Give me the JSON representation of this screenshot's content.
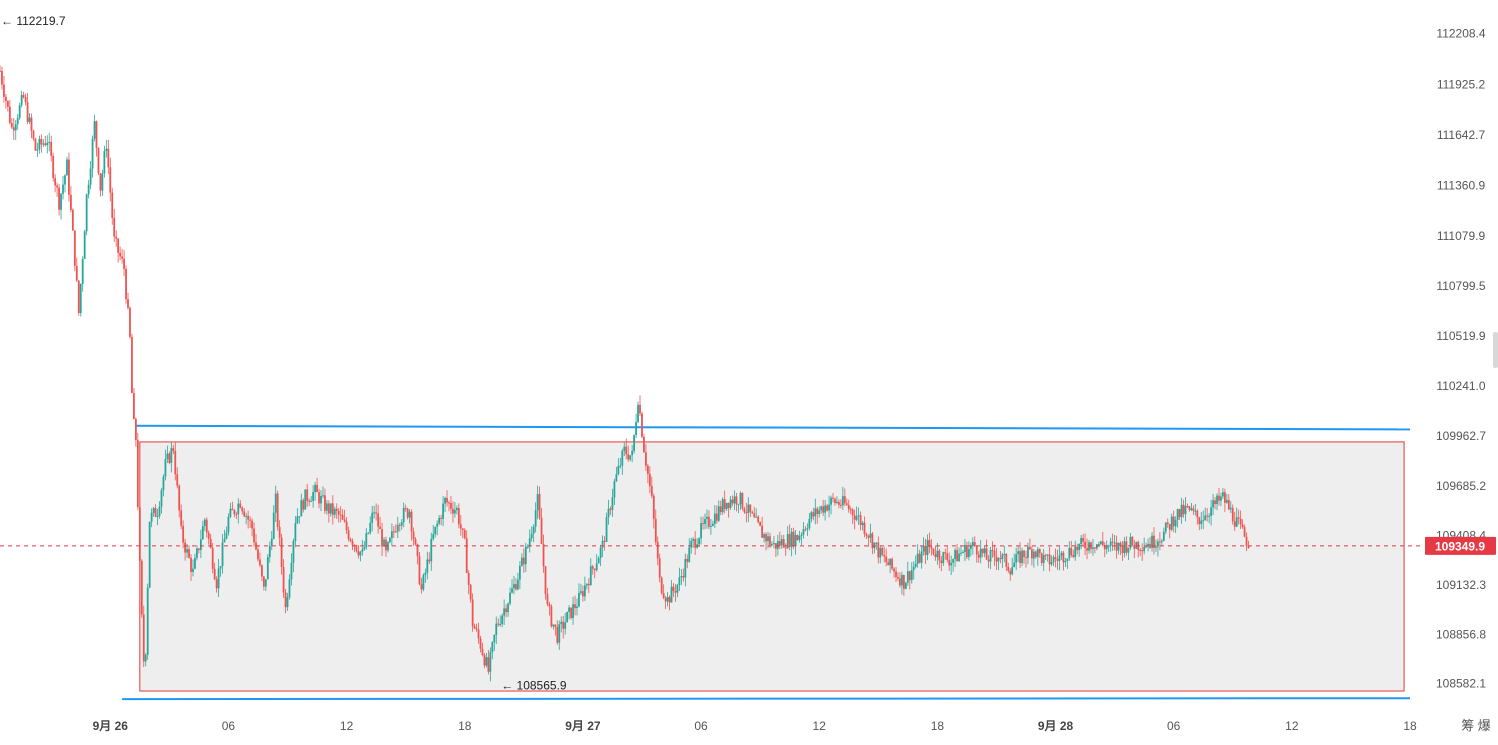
{
  "chart_data": {
    "type": "candlestick",
    "title": "",
    "xlabel": "",
    "ylabel": "",
    "ylim": [
      108490,
      112340
    ],
    "y_ticks": [
      "112208.4",
      "111925.2",
      "111642.7",
      "111360.9",
      "111079.9",
      "110799.5",
      "110519.9",
      "110241.0",
      "109962.7",
      "109685.2",
      "109408.4",
      "109132.3",
      "108856.8",
      "108582.1"
    ],
    "x_ticks": [
      {
        "label": "9月 26",
        "hour": 0,
        "bold": true
      },
      {
        "label": "06",
        "hour": 6,
        "bold": false
      },
      {
        "label": "12",
        "hour": 12,
        "bold": false
      },
      {
        "label": "18",
        "hour": 18,
        "bold": false
      },
      {
        "label": "9月 27",
        "hour": 24,
        "bold": true
      },
      {
        "label": "06",
        "hour": 30,
        "bold": false
      },
      {
        "label": "12",
        "hour": 36,
        "bold": false
      },
      {
        "label": "18",
        "hour": 42,
        "bold": false
      },
      {
        "label": "9月 28",
        "hour": 48,
        "bold": true
      },
      {
        "label": "06",
        "hour": 54,
        "bold": false
      },
      {
        "label": "12",
        "hour": 60,
        "bold": false
      },
      {
        "label": "18",
        "hour": 66,
        "bold": false
      }
    ],
    "x_range_hours": [
      -5.6,
      66.0
    ],
    "price_path": [
      [
        -5.6,
        112000
      ],
      [
        -5.0,
        111680
      ],
      [
        -4.4,
        111850
      ],
      [
        -3.8,
        111560
      ],
      [
        -3.2,
        111620
      ],
      [
        -2.6,
        111270
      ],
      [
        -2.2,
        111470
      ],
      [
        -1.8,
        110950
      ],
      [
        -1.6,
        110650
      ],
      [
        -1.2,
        111300
      ],
      [
        -0.8,
        111700
      ],
      [
        -0.5,
        111350
      ],
      [
        -0.2,
        111600
      ],
      [
        0.2,
        111050
      ],
      [
        0.7,
        110900
      ],
      [
        1.0,
        110500
      ],
      [
        1.15,
        110050
      ],
      [
        1.3,
        109950
      ],
      [
        1.55,
        109050
      ],
      [
        1.75,
        108600
      ],
      [
        2.0,
        109500
      ],
      [
        2.4,
        109550
      ],
      [
        2.8,
        109800
      ],
      [
        3.2,
        109900
      ],
      [
        3.6,
        109420
      ],
      [
        4.2,
        109200
      ],
      [
        4.8,
        109500
      ],
      [
        5.4,
        109150
      ],
      [
        6.0,
        109500
      ],
      [
        6.6,
        109600
      ],
      [
        7.2,
        109450
      ],
      [
        7.8,
        109100
      ],
      [
        8.4,
        109600
      ],
      [
        8.9,
        109000
      ],
      [
        9.4,
        109500
      ],
      [
        9.9,
        109620
      ],
      [
        10.4,
        109650
      ],
      [
        11.0,
        109560
      ],
      [
        11.6,
        109520
      ],
      [
        12.2,
        109400
      ],
      [
        12.8,
        109300
      ],
      [
        13.4,
        109550
      ],
      [
        14.0,
        109300
      ],
      [
        14.6,
        109500
      ],
      [
        15.2,
        109550
      ],
      [
        15.8,
        109100
      ],
      [
        16.4,
        109400
      ],
      [
        17.0,
        109600
      ],
      [
        17.6,
        109550
      ],
      [
        18.0,
        109350
      ],
      [
        18.4,
        108920
      ],
      [
        18.8,
        108800
      ],
      [
        19.2,
        108650
      ],
      [
        19.6,
        108900
      ],
      [
        20.0,
        109000
      ],
      [
        20.6,
        109150
      ],
      [
        21.2,
        109350
      ],
      [
        21.7,
        109600
      ],
      [
        22.2,
        109000
      ],
      [
        22.7,
        108850
      ],
      [
        23.2,
        108950
      ],
      [
        23.8,
        109050
      ],
      [
        24.4,
        109200
      ],
      [
        25.0,
        109350
      ],
      [
        25.6,
        109700
      ],
      [
        26.1,
        109880
      ],
      [
        26.5,
        109850
      ],
      [
        26.8,
        110180
      ],
      [
        27.1,
        109900
      ],
      [
        27.5,
        109600
      ],
      [
        27.9,
        109150
      ],
      [
        28.3,
        109050
      ],
      [
        28.9,
        109150
      ],
      [
        29.5,
        109350
      ],
      [
        30.1,
        109450
      ],
      [
        30.7,
        109520
      ],
      [
        31.3,
        109600
      ],
      [
        31.9,
        109620
      ],
      [
        32.5,
        109520
      ],
      [
        33.1,
        109420
      ],
      [
        33.7,
        109350
      ],
      [
        34.3,
        109380
      ],
      [
        34.9,
        109400
      ],
      [
        35.5,
        109500
      ],
      [
        36.1,
        109560
      ],
      [
        36.7,
        109600
      ],
      [
        37.3,
        109580
      ],
      [
        37.9,
        109520
      ],
      [
        38.5,
        109420
      ],
      [
        39.1,
        109300
      ],
      [
        39.7,
        109220
      ],
      [
        40.3,
        109150
      ],
      [
        40.9,
        109250
      ],
      [
        41.5,
        109350
      ],
      [
        42.1,
        109300
      ],
      [
        42.7,
        109270
      ],
      [
        43.3,
        109320
      ],
      [
        43.9,
        109350
      ],
      [
        44.5,
        109280
      ],
      [
        45.1,
        109300
      ],
      [
        45.7,
        109230
      ],
      [
        46.3,
        109300
      ],
      [
        46.9,
        109330
      ],
      [
        47.5,
        109260
      ],
      [
        48.1,
        109280
      ],
      [
        48.7,
        109320
      ],
      [
        49.3,
        109350
      ],
      [
        49.9,
        109370
      ],
      [
        50.5,
        109350
      ],
      [
        51.1,
        109340
      ],
      [
        51.7,
        109360
      ],
      [
        52.3,
        109360
      ],
      [
        52.9,
        109370
      ],
      [
        53.5,
        109420
      ],
      [
        54.1,
        109520
      ],
      [
        54.7,
        109550
      ],
      [
        55.3,
        109500
      ],
      [
        55.9,
        109560
      ],
      [
        56.5,
        109620
      ],
      [
        57.1,
        109500
      ],
      [
        57.6,
        109400
      ],
      [
        57.9,
        109349.9
      ]
    ],
    "high_annotation": {
      "label": "112219.7",
      "value": 112219.7
    },
    "low_annotation": {
      "label": "108565.9",
      "value": 108565.9,
      "hour": 19.8
    },
    "current_price": {
      "label": "109349.9",
      "value": 109349.9
    },
    "annotation_lines": [
      {
        "name": "upper-trendline",
        "color": "#2196f3",
        "from": [
          1.3,
          110020
        ],
        "to": [
          66.0,
          110000
        ]
      },
      {
        "name": "lower-trendline",
        "color": "#2196f3",
        "from": [
          0.6,
          108495
        ],
        "to": [
          66.0,
          108500
        ]
      }
    ],
    "range_box": {
      "from_hour": 1.5,
      "to_hour": 65.7,
      "top": 109930,
      "bottom": 108540,
      "fill": "#eeeeee",
      "stroke": "#e53935"
    },
    "colors": {
      "up": "#26a69a",
      "down": "#ef5350",
      "background": "#ffffff",
      "current_label_bg": "#e53945"
    },
    "grid": false,
    "corner_label": "筹 爆"
  }
}
